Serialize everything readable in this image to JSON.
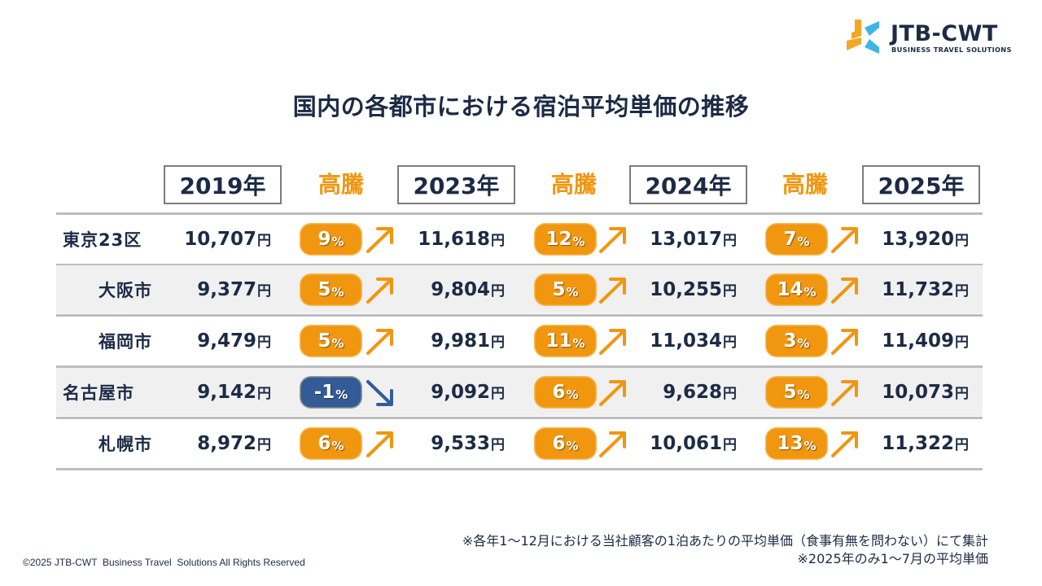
{
  "logo": {
    "wordmark": "JTB-CWT",
    "tagline": "BUSINESS TRAVEL SOLUTIONS",
    "colors": {
      "orange": "#f5a623",
      "blue": "#3fb4e5",
      "navy": "#1d2c44"
    }
  },
  "title": "国内の各都市における宿泊平均単価の推移",
  "header": {
    "years": [
      "2019年",
      "2023年",
      "2024年",
      "2025年"
    ],
    "surge_label": "高騰"
  },
  "currency_unit": "円",
  "percent_unit": "%",
  "rows": [
    {
      "city": "東京23区",
      "prices": [
        "10,707",
        "11,618",
        "13,017",
        "13,920"
      ],
      "changes": [
        {
          "value": "9",
          "direction": "up"
        },
        {
          "value": "12",
          "direction": "up"
        },
        {
          "value": "7",
          "direction": "up"
        }
      ]
    },
    {
      "city": "大阪市",
      "prices": [
        "9,377",
        "9,804",
        "10,255",
        "11,732"
      ],
      "changes": [
        {
          "value": "5",
          "direction": "up"
        },
        {
          "value": "5",
          "direction": "up"
        },
        {
          "value": "14",
          "direction": "up"
        }
      ]
    },
    {
      "city": "福岡市",
      "prices": [
        "9,479",
        "9,981",
        "11,034",
        "11,409"
      ],
      "changes": [
        {
          "value": "5",
          "direction": "up"
        },
        {
          "value": "11",
          "direction": "up"
        },
        {
          "value": "3",
          "direction": "up"
        }
      ]
    },
    {
      "city": "名古屋市",
      "prices": [
        "9,142",
        "9,092",
        "9,628",
        "10,073"
      ],
      "changes": [
        {
          "value": "-1",
          "direction": "down"
        },
        {
          "value": "6",
          "direction": "up"
        },
        {
          "value": "5",
          "direction": "up"
        }
      ]
    },
    {
      "city": "札幌市",
      "prices": [
        "8,972",
        "9,533",
        "10,061",
        "11,322"
      ],
      "changes": [
        {
          "value": "6",
          "direction": "up"
        },
        {
          "value": "6",
          "direction": "up"
        },
        {
          "value": "13",
          "direction": "up"
        }
      ]
    }
  ],
  "colors": {
    "up": "#f1960f",
    "down": "#335c96",
    "text": "#1c2b45",
    "row_shade": "#f0f0f0",
    "rule": "#bdbdbd"
  },
  "icons": {
    "up": "arrow-up-right-icon",
    "down": "arrow-down-right-icon"
  },
  "notes": [
    "※各年1～12月における当社顧客の1泊あたりの平均単価（食事有無を問わない）にて集計",
    "※2025年のみ1～7月の平均単価"
  ],
  "copyright": "©2025 JTB-CWT  Business Travel  Solutions All Rights Reserved"
}
